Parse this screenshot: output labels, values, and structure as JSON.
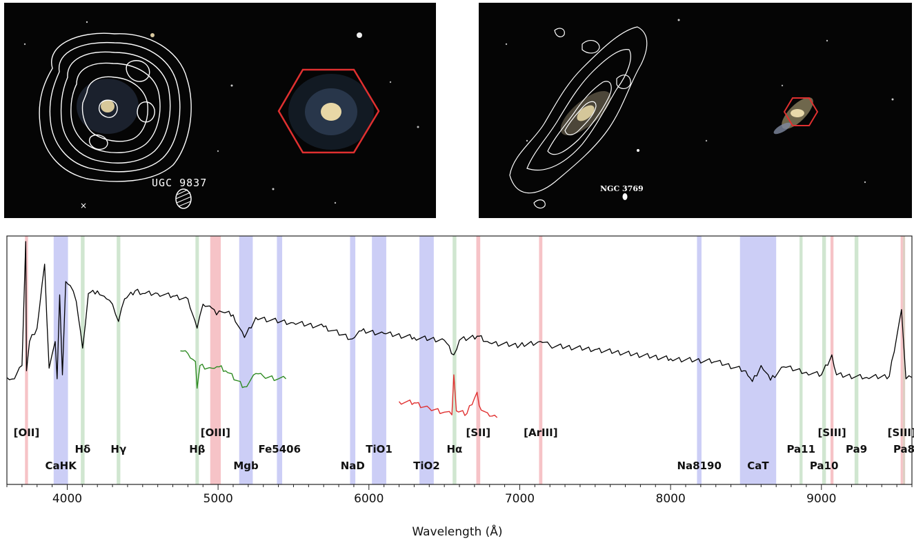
{
  "images": {
    "left_galaxy_label": "UGC 9837",
    "right_galaxy_label": "NGC 3769"
  },
  "colors": {
    "contour": "#ffffff",
    "hexagon": "#e03030",
    "spectrum_main": "#000000",
    "spectrum_hbeta_zoom": "#2e8b22",
    "spectrum_halpha_zoom": "#e03030",
    "band_emission": "#f4b8bd",
    "band_absorption": "#c3c6f5",
    "band_balmer": "#c8e2c8",
    "band_mixed": "#d7c7b8"
  },
  "chart_data": {
    "type": "line",
    "xlabel": "Wavelength (Å)",
    "ylabel": "",
    "xlim": [
      3600,
      9600
    ],
    "xticks": [
      4000,
      5000,
      6000,
      7000,
      8000,
      9000
    ],
    "grid": false,
    "bands": [
      {
        "label": "[OII]",
        "x0": 3720,
        "x1": 3740,
        "kind": "emission",
        "row": 0
      },
      {
        "label": "CaHK",
        "x0": 3910,
        "x1": 4005,
        "kind": "absorption",
        "row": 2
      },
      {
        "label": "Hδ",
        "x0": 4090,
        "x1": 4115,
        "kind": "balmer",
        "row": 1
      },
      {
        "label": "Hγ",
        "x0": 4328,
        "x1": 4352,
        "kind": "balmer",
        "row": 1
      },
      {
        "label": "Hβ",
        "x0": 4850,
        "x1": 4873,
        "kind": "balmer",
        "row": 1
      },
      {
        "label": "[OIII]",
        "x0": 4948,
        "x1": 5018,
        "kind": "emission",
        "row": 0
      },
      {
        "label": "Mgb",
        "x0": 5140,
        "x1": 5230,
        "kind": "absorption",
        "row": 2
      },
      {
        "label": "Fe5406",
        "x0": 5390,
        "x1": 5425,
        "kind": "absorption",
        "row": 1
      },
      {
        "label": "NaD",
        "x0": 5875,
        "x1": 5910,
        "kind": "absorption",
        "row": 2
      },
      {
        "label": "TiO1",
        "x0": 6020,
        "x1": 6115,
        "kind": "absorption",
        "row": 1
      },
      {
        "label": "TiO2",
        "x0": 6335,
        "x1": 6430,
        "kind": "absorption",
        "row": 2
      },
      {
        "label": "Hα",
        "x0": 6555,
        "x1": 6580,
        "kind": "balmer",
        "row": 1
      },
      {
        "label": "[SII]",
        "x0": 6712,
        "x1": 6738,
        "kind": "emission",
        "row": 0
      },
      {
        "label": "[ArIII]",
        "x0": 7128,
        "x1": 7150,
        "kind": "emission",
        "row": 0
      },
      {
        "label": "Na8190",
        "x0": 8175,
        "x1": 8205,
        "kind": "absorption",
        "row": 2
      },
      {
        "label": "CaT",
        "x0": 8460,
        "x1": 8700,
        "kind": "absorption",
        "row": 2
      },
      {
        "label": "Pa11",
        "x0": 8855,
        "x1": 8875,
        "kind": "balmer",
        "row": 1
      },
      {
        "label": "[SIII]",
        "x0": 9060,
        "x1": 9080,
        "kind": "emission",
        "row": 0
      },
      {
        "label": "Pa10",
        "x0": 9005,
        "x1": 9030,
        "kind": "balmer",
        "row": 2
      },
      {
        "label": "Pa9",
        "x0": 9220,
        "x1": 9245,
        "kind": "balmer",
        "row": 1
      },
      {
        "label": "[SIII]",
        "x0": 9525,
        "x1": 9540,
        "kind": "emission",
        "row": 0
      },
      {
        "label": "Pa8",
        "x0": 9540,
        "x1": 9555,
        "kind": "mixed",
        "row": 1
      }
    ],
    "series": [
      {
        "kind": "main",
        "x": [
          3600,
          3650,
          3700,
          3725,
          3730,
          3750,
          3800,
          3850,
          3880,
          3920,
          3933,
          3950,
          3968,
          3990,
          4020,
          4060,
          4102,
          4140,
          4200,
          4260,
          4300,
          4340,
          4380,
          4450,
          4500,
          4600,
          4700,
          4800,
          4861,
          4900,
          4959,
          4990,
          5007,
          5030,
          5100,
          5175,
          5250,
          5350,
          5500,
          5700,
          5890,
          5950,
          6100,
          6300,
          6500,
          6563,
          6600,
          6717,
          6731,
          6800,
          7000,
          7136,
          7200,
          7500,
          8000,
          8300,
          8498,
          8542,
          8600,
          8662,
          8750,
          8900,
          9000,
          9069,
          9100,
          9300,
          9450,
          9531,
          9560,
          9600
        ],
        "y": [
          0.03,
          0.02,
          0.12,
          1.05,
          0.08,
          0.3,
          0.4,
          0.88,
          0.1,
          0.3,
          0.02,
          0.65,
          0.05,
          0.75,
          0.72,
          0.6,
          0.25,
          0.66,
          0.68,
          0.62,
          0.58,
          0.45,
          0.62,
          0.68,
          0.66,
          0.66,
          0.64,
          0.62,
          0.4,
          0.58,
          0.55,
          0.5,
          0.53,
          0.52,
          0.5,
          0.33,
          0.48,
          0.46,
          0.44,
          0.41,
          0.32,
          0.38,
          0.36,
          0.33,
          0.31,
          0.2,
          0.31,
          0.34,
          0.34,
          0.29,
          0.27,
          0.3,
          0.27,
          0.24,
          0.17,
          0.15,
          0.08,
          0.0,
          0.12,
          0.01,
          0.11,
          0.07,
          0.05,
          0.2,
          0.05,
          0.03,
          0.04,
          0.54,
          0.02,
          0.03
        ]
      },
      {
        "kind": "zoom",
        "x": [
          4750,
          4800,
          4850,
          4861,
          4880,
          4959,
          5007,
          5050,
          5175,
          5250,
          5300,
          5400,
          5450
        ],
        "y": [
          0.23,
          0.21,
          0.15,
          -0.05,
          0.12,
          0.1,
          0.11,
          0.08,
          -0.04,
          0.06,
          0.04,
          0.02,
          0.02
        ]
      },
      {
        "kind": "zoom",
        "x": [
          6200,
          6300,
          6400,
          6500,
          6550,
          6563,
          6580,
          6650,
          6717,
          6731,
          6800,
          6850
        ],
        "y": [
          -0.15,
          -0.16,
          -0.2,
          -0.23,
          -0.25,
          0.05,
          -0.22,
          -0.24,
          -0.08,
          -0.18,
          -0.26,
          -0.27
        ]
      }
    ]
  }
}
